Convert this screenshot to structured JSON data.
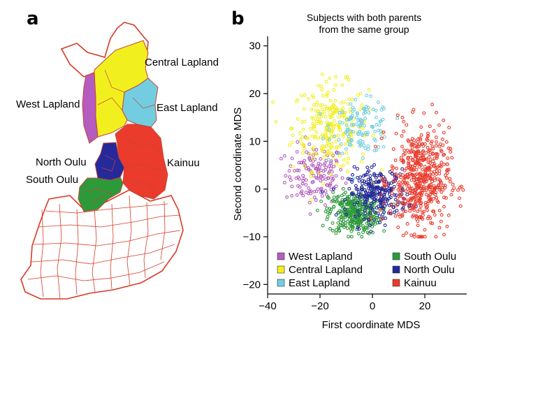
{
  "panel_a": {
    "letter": "a",
    "regions": [
      {
        "name": "West Lapland",
        "color": "#b45cc0"
      },
      {
        "name": "Central Lapland",
        "color": "#f2ef1f"
      },
      {
        "name": "East Lapland",
        "color": "#72cde0"
      },
      {
        "name": "North Oulu",
        "color": "#25299a"
      },
      {
        "name": "South Oulu",
        "color": "#2d9a3a"
      },
      {
        "name": "Kainuu",
        "color": "#ea3b2d"
      }
    ],
    "border_color": "#d83a25"
  },
  "panel_b": {
    "letter": "b"
  },
  "chart_data": {
    "type": "scatter",
    "title": "Subjects with both parents\nfrom the same group",
    "xlabel": "First coordinate MDS",
    "ylabel": "Second coordinate MDS",
    "xlim": [
      -40,
      36
    ],
    "ylim": [
      -22,
      32
    ],
    "xticks": [
      -40,
      -20,
      0,
      20
    ],
    "yticks": [
      -20,
      -10,
      0,
      10,
      20,
      30
    ],
    "grid": false,
    "legend_position": "bottom-left, two columns",
    "series": [
      {
        "name": "West Lapland",
        "color": "#b45cc0",
        "center": [
          -22,
          3
        ],
        "spread": [
          7,
          3.5
        ],
        "n": 150
      },
      {
        "name": "Central Lapland",
        "color": "#f2ef1f",
        "center": [
          -16,
          13
        ],
        "spread": [
          9,
          5
        ],
        "n": 260
      },
      {
        "name": "East Lapland",
        "color": "#72cde0",
        "center": [
          -4,
          13
        ],
        "spread": [
          7,
          3
        ],
        "n": 120
      },
      {
        "name": "South Oulu",
        "color": "#2d9a3a",
        "center": [
          -7,
          -5
        ],
        "spread": [
          6,
          2.5
        ],
        "n": 350
      },
      {
        "name": "North Oulu",
        "color": "#25299a",
        "center": [
          2,
          -1
        ],
        "spread": [
          7,
          2.8
        ],
        "n": 260
      },
      {
        "name": "Kainuu",
        "color": "#ea3b2d",
        "center": [
          18,
          2
        ],
        "spread": [
          7,
          6
        ],
        "n": 520
      }
    ]
  }
}
